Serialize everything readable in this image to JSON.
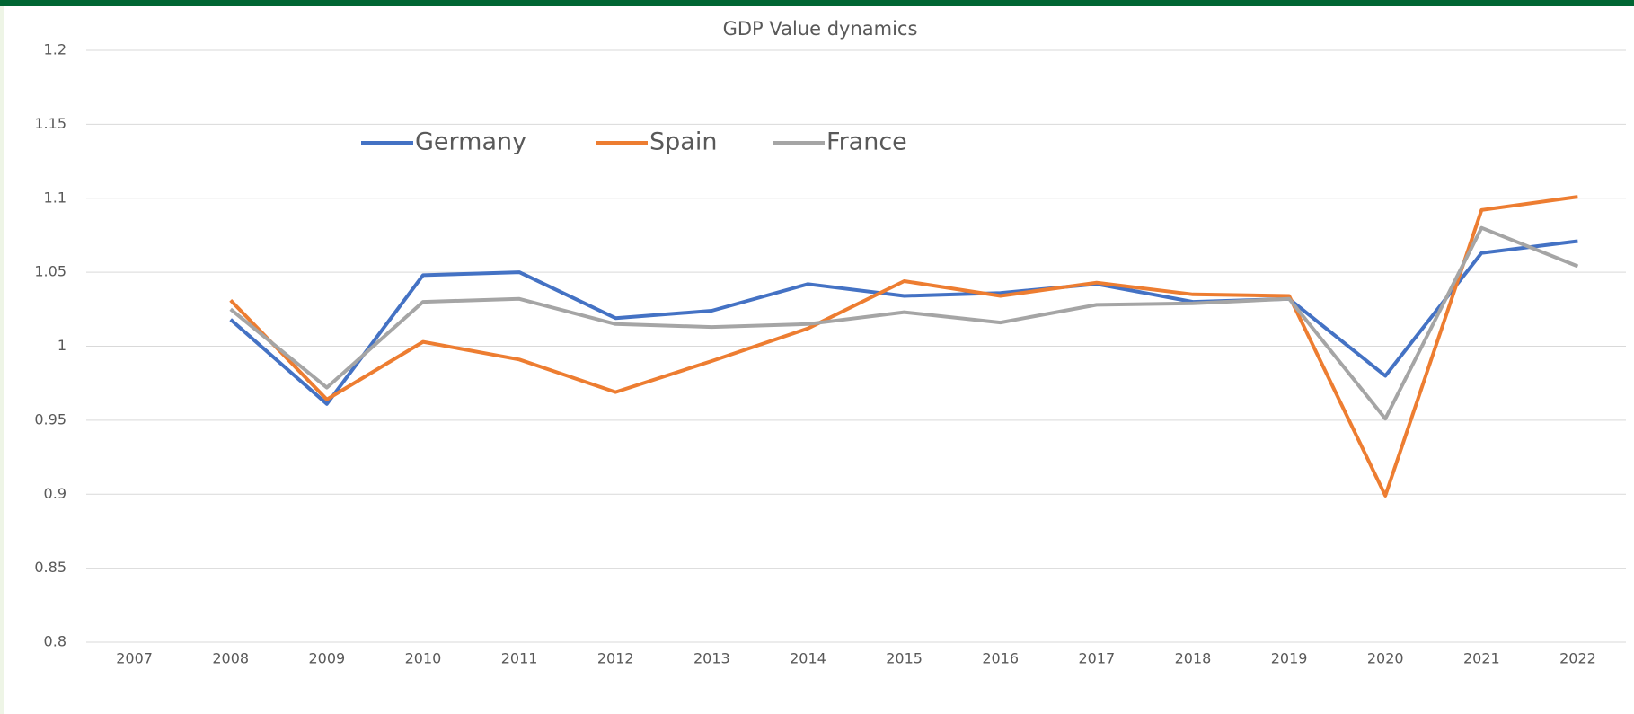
{
  "chart_data": {
    "type": "line",
    "title": "GDP Value dynamics",
    "categories": [
      "2007",
      "2008",
      "2009",
      "2010",
      "2011",
      "2012",
      "2013",
      "2014",
      "2015",
      "2016",
      "2017",
      "2018",
      "2019",
      "2020",
      "2021",
      "2022"
    ],
    "series": [
      {
        "name": "Germany",
        "color": "#4472c4",
        "values": [
          null,
          1.018,
          0.961,
          1.048,
          1.05,
          1.019,
          1.024,
          1.042,
          1.034,
          1.036,
          1.042,
          1.03,
          1.032,
          0.98,
          1.063,
          1.071
        ]
      },
      {
        "name": "Spain",
        "color": "#ed7d31",
        "values": [
          null,
          1.031,
          0.964,
          1.003,
          0.991,
          0.969,
          0.99,
          1.012,
          1.044,
          1.034,
          1.043,
          1.035,
          1.034,
          0.899,
          1.092,
          1.101
        ]
      },
      {
        "name": "France",
        "color": "#a5a5a5",
        "values": [
          null,
          1.025,
          0.972,
          1.03,
          1.032,
          1.015,
          1.013,
          1.015,
          1.023,
          1.016,
          1.028,
          1.029,
          1.032,
          0.951,
          1.08,
          1.054
        ]
      }
    ],
    "ylim": [
      0.8,
      1.2
    ],
    "yticks": [
      0.8,
      0.85,
      0.9,
      0.95,
      1,
      1.05,
      1.1,
      1.15,
      1.2
    ],
    "grid": true,
    "legend": "top-left"
  }
}
